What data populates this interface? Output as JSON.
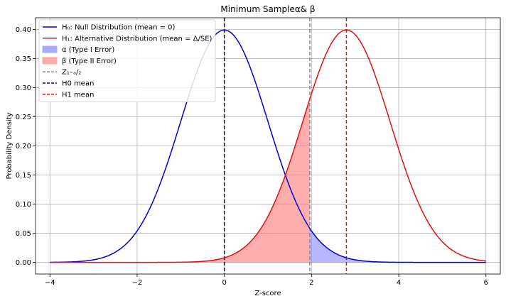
{
  "chart_data": {
    "type": "line",
    "title": "Minimum Sample\u0001α& β",
    "xlabel": "Z-score",
    "ylabel": "Probability Density",
    "xlim": [
      -4.33,
      6.33
    ],
    "ylim": [
      -0.02,
      0.42
    ],
    "xticks": [
      -4,
      -2,
      0,
      2,
      4,
      6
    ],
    "xtick_labels": [
      "−4",
      "−2",
      "0",
      "2",
      "4",
      "6"
    ],
    "yticks": [
      0.0,
      0.05,
      0.1,
      0.15,
      0.2,
      0.25,
      0.3,
      0.35,
      0.4
    ],
    "ytick_labels": [
      "0.00",
      "0.05",
      "0.10",
      "0.15",
      "0.20",
      "0.25",
      "0.30",
      "0.35",
      "0.40"
    ],
    "grid": true,
    "legend_position": "top-left",
    "x_range": [
      -4,
      6
    ],
    "series": [
      {
        "name": "H₀: Null Distribution (mean = 0)",
        "kind": "normal_pdf",
        "mean": 0,
        "sd": 1,
        "color": "#0000cc"
      },
      {
        "name": "H₁: Alternative Distribution (mean = Δ/SE)",
        "kind": "normal_pdf",
        "mean": 2.8,
        "sd": 1,
        "color": "#dd1111"
      }
    ],
    "fills": [
      {
        "name": "α (Type I Error)",
        "under_series": 0,
        "from": 1.96,
        "to": 6,
        "color": "#8888ff"
      },
      {
        "name": "β (Type II Error)",
        "under_series": 1,
        "from": -4,
        "to": 1.96,
        "color": "#ff7777"
      }
    ],
    "vlines": [
      {
        "name": "Z_{1−α/2}",
        "x": 1.96,
        "color": "#888888",
        "style": "dashed"
      },
      {
        "name": "H0 mean",
        "x": 0,
        "color": "#000099",
        "style": "dashed"
      },
      {
        "name": "H1 mean",
        "x": 2.8,
        "color": "#dd1111",
        "style": "dashed"
      }
    ],
    "legend": [
      {
        "label": "H₀: Null Distribution (mean = 0)",
        "kind": "line",
        "color": "#0000cc"
      },
      {
        "label": "H₁: Alternative Distribution (mean = Δ/SE)",
        "kind": "line",
        "color": "#dd1111"
      },
      {
        "label": "α (Type I Error)",
        "kind": "patch",
        "color": "#aaaaff"
      },
      {
        "label": "β (Type II Error)",
        "kind": "patch",
        "color": "#ffaaaa"
      },
      {
        "label": "Z₁₋ₐ/₂",
        "kind": "dash",
        "color": "#888888"
      },
      {
        "label": "H0 mean",
        "kind": "dash",
        "color": "#000099"
      },
      {
        "label": "H1 mean",
        "kind": "dash",
        "color": "#dd1111"
      }
    ]
  }
}
